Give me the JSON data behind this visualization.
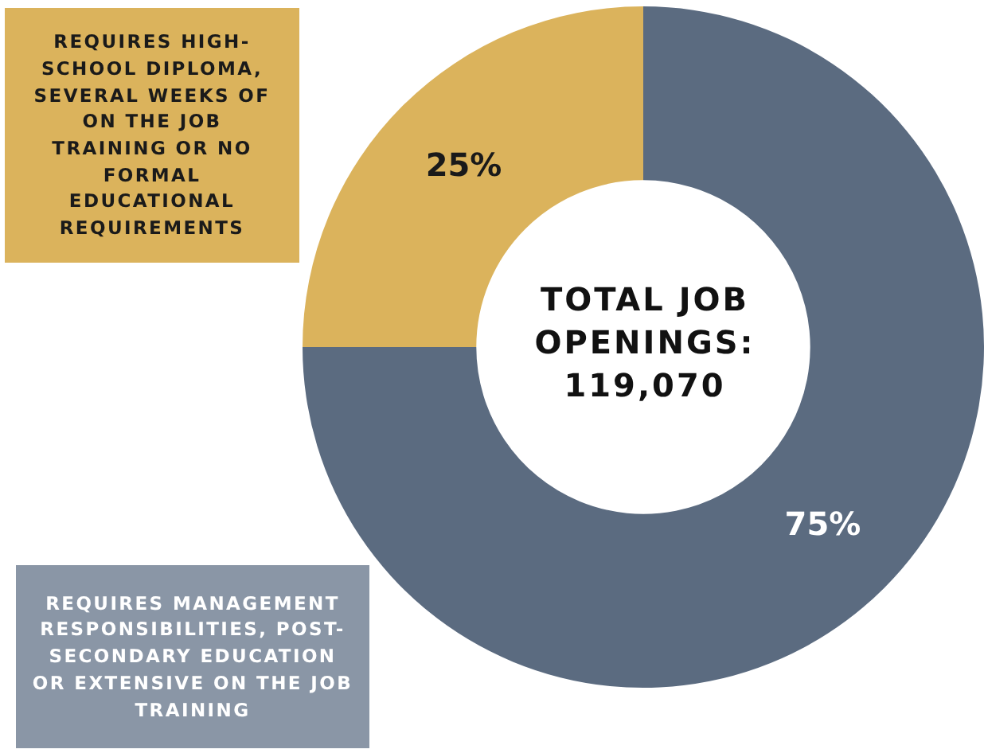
{
  "chart_data": {
    "type": "donut",
    "categories": [
      "REQUIRES MANAGEMENT RESPONSIBILITIES, POST-SECONDARY EDUCATION OR EXTENSIVE ON THE JOB TRAINING",
      "REQUIRES HIGH-SCHOOL DIPLOMA, SEVERAL WEEKS OF ON THE JOB TRAINING OR NO FORMAL EDUCATIONAL REQUIREMENTS"
    ],
    "values": [
      75,
      25
    ],
    "colors": [
      "#5b6b80",
      "#dbb35c"
    ],
    "value_labels": [
      "75%",
      "25%"
    ],
    "annotations": [
      "TOTAL JOB OPENINGS: 119,070"
    ],
    "legend": false
  }
}
